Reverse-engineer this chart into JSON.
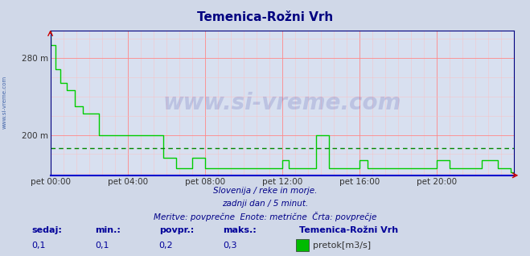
{
  "title": "Temenica-Rožni Vrh",
  "title_color": "#000080",
  "bg_color": "#d0d8e8",
  "plot_bg_color": "#d8e0f0",
  "grid_color_major": "#ff8888",
  "grid_color_minor": "#ffbbbb",
  "ytick_labels": [
    "280 m",
    "200 m"
  ],
  "ytick_values": [
    280,
    200
  ],
  "ylim": [
    158,
    308
  ],
  "xlim": [
    0,
    288
  ],
  "xtick_positions": [
    0,
    48,
    96,
    144,
    192,
    240
  ],
  "xtick_labels": [
    "pet 00:00",
    "pet 04:00",
    "pet 08:00",
    "pet 12:00",
    "pet 16:00",
    "pet 20:00"
  ],
  "line_color": "#00cc00",
  "avg_line_color": "#008800",
  "avg_line_value": 186,
  "watermark_text": "www.si-vreme.com",
  "footer_line1": "Slovenija / reke in morje.",
  "footer_line2": "zadnji dan / 5 minut.",
  "footer_line3": "Meritve: povprečne  Enote: metrične  Črta: povprečje",
  "stats_labels": [
    "sedaj:",
    "min.:",
    "povpr.:",
    "maks.:"
  ],
  "stats_values": [
    "0,1",
    "0,1",
    "0,2",
    "0,3"
  ],
  "legend_station": "Temenica-Rožni Vrh",
  "legend_color": "#00bb00",
  "legend_label": "pretok[m3/s]",
  "left_label_color": "#4466aa",
  "left_label_text": "www.si-vreme.com",
  "series_x": [
    0,
    0,
    3,
    3,
    6,
    6,
    10,
    10,
    15,
    15,
    20,
    20,
    30,
    30,
    48,
    48,
    70,
    70,
    78,
    78,
    88,
    88,
    96,
    96,
    144,
    144,
    148,
    148,
    165,
    165,
    173,
    173,
    192,
    192,
    197,
    197,
    240,
    240,
    248,
    248,
    268,
    268,
    278,
    278,
    286,
    286,
    288
  ],
  "series_y": [
    308,
    293,
    293,
    268,
    268,
    254,
    254,
    246,
    246,
    230,
    230,
    222,
    222,
    200,
    200,
    200,
    200,
    176,
    176,
    165,
    165,
    176,
    176,
    165,
    165,
    174,
    174,
    165,
    165,
    200,
    200,
    165,
    165,
    174,
    174,
    165,
    165,
    174,
    174,
    165,
    165,
    174,
    174,
    165,
    165,
    161,
    161
  ]
}
